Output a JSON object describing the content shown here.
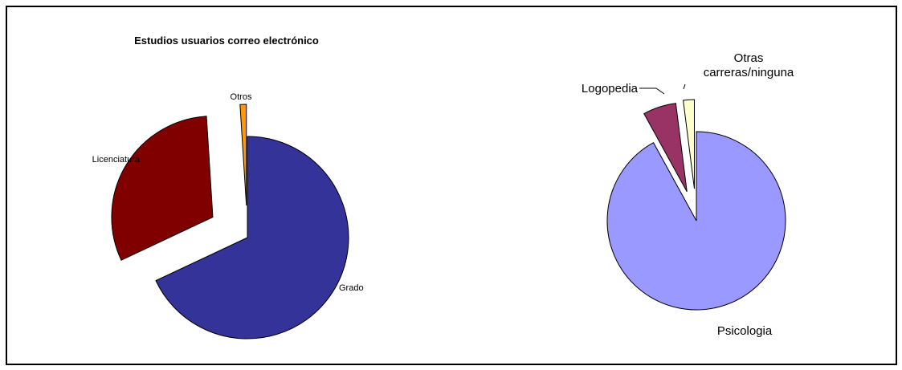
{
  "chart_data": [
    {
      "type": "pie",
      "title": "Estudios usuarios correo electrónico",
      "slices": [
        {
          "label": "Grado",
          "value": 68,
          "color": "#333399"
        },
        {
          "label": "Licenciatura",
          "value": 31,
          "color": "#800000"
        },
        {
          "label": "Otros",
          "value": 1,
          "color": "#FF9900"
        }
      ]
    },
    {
      "type": "pie",
      "title": "",
      "slices": [
        {
          "label": "Psicologia",
          "value": 92,
          "color": "#9999FF"
        },
        {
          "label": "Logopedia",
          "value": 6,
          "color": "#993366"
        },
        {
          "label": "Otras carreras/ninguna",
          "value": 2,
          "color": "#FFFFCC"
        }
      ]
    }
  ]
}
